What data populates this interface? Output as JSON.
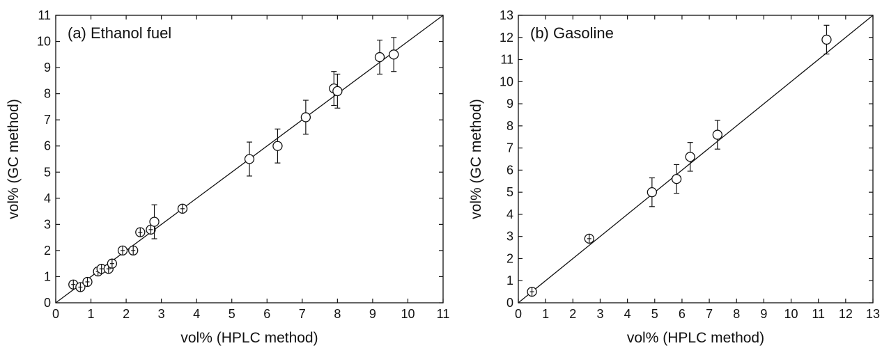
{
  "chart_data": [
    {
      "type": "scatter",
      "panel_label": "(a) Ethanol fuel",
      "xlabel": "vol% (HPLC method)",
      "ylabel": "vol% (GC method)",
      "xlim": [
        0,
        11
      ],
      "ylim": [
        0,
        11
      ],
      "xticks": [
        0,
        1,
        2,
        3,
        4,
        5,
        6,
        7,
        8,
        9,
        10,
        11
      ],
      "yticks": [
        0,
        1,
        2,
        3,
        4,
        5,
        6,
        7,
        8,
        9,
        10,
        11
      ],
      "reference_line": "y = x",
      "grid": false,
      "points": [
        {
          "x": 0.5,
          "y": 0.7,
          "err": 0.05
        },
        {
          "x": 0.7,
          "y": 0.6,
          "err": 0.05
        },
        {
          "x": 0.9,
          "y": 0.8,
          "err": 0.05
        },
        {
          "x": 1.2,
          "y": 1.2,
          "err": 0.05
        },
        {
          "x": 1.3,
          "y": 1.3,
          "err": 0.05
        },
        {
          "x": 1.5,
          "y": 1.3,
          "err": 0.05
        },
        {
          "x": 1.6,
          "y": 1.5,
          "err": 0.05
        },
        {
          "x": 1.9,
          "y": 2.0,
          "err": 0.05
        },
        {
          "x": 2.2,
          "y": 2.0,
          "err": 0.05
        },
        {
          "x": 2.4,
          "y": 2.7,
          "err": 0.05
        },
        {
          "x": 2.7,
          "y": 2.8,
          "err": 0.05
        },
        {
          "x": 2.8,
          "y": 3.1,
          "err": 0.65
        },
        {
          "x": 3.6,
          "y": 3.6,
          "err": 0.05
        },
        {
          "x": 5.5,
          "y": 5.5,
          "err": 0.65
        },
        {
          "x": 6.3,
          "y": 6.0,
          "err": 0.65
        },
        {
          "x": 7.1,
          "y": 7.1,
          "err": 0.65
        },
        {
          "x": 7.9,
          "y": 8.2,
          "err": 0.65
        },
        {
          "x": 8.0,
          "y": 8.1,
          "err": 0.65
        },
        {
          "x": 9.2,
          "y": 9.4,
          "err": 0.65
        },
        {
          "x": 9.6,
          "y": 9.5,
          "err": 0.65
        }
      ]
    },
    {
      "type": "scatter",
      "panel_label": "(b) Gasoline",
      "xlabel": "vol% (HPLC method)",
      "ylabel": "vol% (GC method)",
      "xlim": [
        0,
        13
      ],
      "ylim": [
        0,
        13
      ],
      "xticks": [
        0,
        1,
        2,
        3,
        4,
        5,
        6,
        7,
        8,
        9,
        10,
        11,
        12,
        13
      ],
      "yticks": [
        0,
        1,
        2,
        3,
        4,
        5,
        6,
        7,
        8,
        9,
        10,
        11,
        12,
        13
      ],
      "reference_line": "y = x",
      "grid": false,
      "points": [
        {
          "x": 0.5,
          "y": 0.5,
          "err": 0.05
        },
        {
          "x": 2.6,
          "y": 2.9,
          "err": 0.05
        },
        {
          "x": 4.9,
          "y": 5.0,
          "err": 0.65
        },
        {
          "x": 5.8,
          "y": 5.6,
          "err": 0.65
        },
        {
          "x": 6.3,
          "y": 6.6,
          "err": 0.65
        },
        {
          "x": 7.3,
          "y": 7.6,
          "err": 0.65
        },
        {
          "x": 11.3,
          "y": 11.9,
          "err": 0.65
        }
      ]
    }
  ]
}
